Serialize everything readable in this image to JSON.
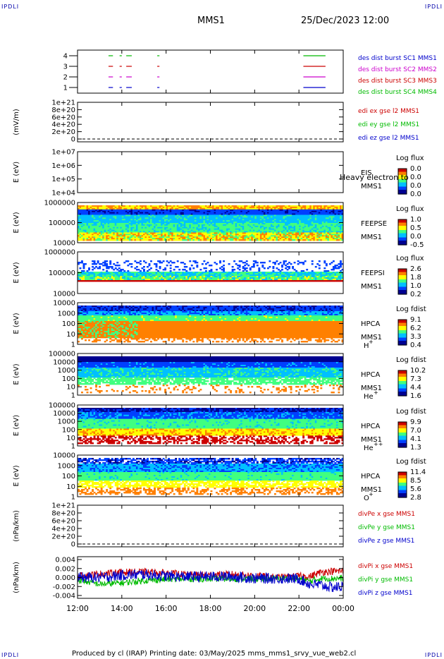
{
  "corner_label": "IPDLI",
  "header": {
    "spacecraft": "MMS1",
    "datetime": "25/Dec/2023 12:00"
  },
  "footer": "Produced by cl (IRAP)   Printing date: 03/May/2025   mms_mms1_srvy_vue_web2.cl",
  "colors": {
    "blue": "#0000cc",
    "magenta": "#cc00cc",
    "red": "#cc0000",
    "green": "#00bb00",
    "colormap": [
      "#000090",
      "#0040ff",
      "#00c0ff",
      "#40ff80",
      "#ffff00",
      "#ff8000",
      "#cc0000"
    ]
  },
  "chart_data": [
    {
      "id": "burst",
      "type": "line",
      "y_ticks": [
        "4",
        "3",
        "2",
        "1"
      ],
      "x_range_hours": [
        12,
        24
      ],
      "series": [
        {
          "name": "des dist burst SC1 MMS1",
          "color": "#0000cc",
          "level": 1,
          "segments": [
            [
              13.4,
              13.6
            ],
            [
              13.9,
              14.0
            ],
            [
              14.2,
              14.45
            ],
            [
              15.6,
              15.7
            ],
            [
              22.2,
              23.2
            ]
          ]
        },
        {
          "name": "des dist burst SC2 MMS2",
          "color": "#cc00cc",
          "level": 2,
          "segments": [
            [
              13.4,
              13.6
            ],
            [
              13.9,
              14.0
            ],
            [
              14.2,
              14.45
            ],
            [
              15.6,
              15.7
            ],
            [
              22.2,
              23.2
            ]
          ]
        },
        {
          "name": "des dist burst SC3 MMS3",
          "color": "#cc0000",
          "level": 3,
          "segments": [
            [
              13.4,
              13.6
            ],
            [
              13.9,
              14.0
            ],
            [
              14.2,
              14.45
            ],
            [
              15.6,
              15.7
            ],
            [
              22.2,
              23.2
            ]
          ]
        },
        {
          "name": "des dist burst SC4 MMS4",
          "color": "#00bb00",
          "level": 4,
          "segments": [
            [
              13.4,
              13.6
            ],
            [
              13.9,
              14.0
            ],
            [
              14.2,
              14.45
            ],
            [
              15.6,
              15.7
            ],
            [
              22.2,
              23.2
            ]
          ]
        }
      ]
    },
    {
      "id": "edi",
      "type": "line",
      "ylabel": "(mV/m)",
      "y_ticks": [
        "1e+21",
        "8e+20",
        "6e+20",
        "4e+20",
        "2e+20",
        "0"
      ],
      "legend": [
        {
          "name": "edi ex gse l2 MMS1",
          "color": "#cc0000"
        },
        {
          "name": "edi ey gse l2 MMS1",
          "color": "#00bb00"
        },
        {
          "name": "edi ez gse l2 MMS1",
          "color": "#0000cc"
        }
      ]
    },
    {
      "id": "eis",
      "type": "heatmap",
      "ylabel": "E (eV)",
      "y_ticks": [
        "1e+07",
        "1e+06",
        "1e+05",
        "1e+04"
      ],
      "instrument": [
        "EIS",
        "MMS1"
      ],
      "overlay_text": "Heavy electron to",
      "colorbar": {
        "title": "Log flux",
        "ticks": [
          "0.0",
          "0.0",
          "0.0",
          "0.0"
        ]
      }
    },
    {
      "id": "feepse",
      "type": "heatmap",
      "ylabel": "E (eV)",
      "y_ticks": [
        "1000000",
        "100000",
        "10000"
      ],
      "instrument": [
        "FEEPSE",
        "MMS1"
      ],
      "colorbar": {
        "title": "Log flux",
        "ticks": [
          "1.0",
          "0.5",
          "0.0",
          "-0.5"
        ]
      }
    },
    {
      "id": "feepsi",
      "type": "heatmap",
      "ylabel": "E (eV)",
      "y_ticks": [
        "1000000",
        "100000",
        "10000"
      ],
      "instrument": [
        "FEEPSI",
        "MMS1"
      ],
      "colorbar": {
        "title": "Log flux",
        "ticks": [
          "2.6",
          "1.8",
          "1.0",
          "0.2"
        ]
      }
    },
    {
      "id": "hpca_h",
      "type": "heatmap",
      "ylabel": "E (eV)",
      "y_ticks": [
        "10000",
        "1000",
        "100",
        "10",
        "1"
      ],
      "instrument": [
        "HPCA",
        "MMS1"
      ],
      "species": "H",
      "charge": "+",
      "colorbar": {
        "title": "Log fdist",
        "ticks": [
          "9.1",
          "6.2",
          "3.3",
          "0.4"
        ]
      }
    },
    {
      "id": "hpca_he",
      "type": "heatmap",
      "ylabel": "E (eV)",
      "y_ticks": [
        "100000",
        "10000",
        "1000",
        "100",
        "10",
        "1"
      ],
      "instrument": [
        "HPCA",
        "MMS1"
      ],
      "species": "He",
      "charge": "+",
      "colorbar": {
        "title": "Log fdist",
        "ticks": [
          "10.2",
          "7.3",
          "4.4",
          "1.6"
        ]
      }
    },
    {
      "id": "hpca_hepp",
      "type": "heatmap",
      "ylabel": "E (eV)",
      "y_ticks": [
        "100000",
        "10000",
        "1000",
        "100",
        "10",
        "1"
      ],
      "instrument": [
        "HPCA",
        "MMS1"
      ],
      "species": "He",
      "charge": "++",
      "colorbar": {
        "title": "Log fdist",
        "ticks": [
          "9.9",
          "7.0",
          "4.1",
          "1.3"
        ]
      }
    },
    {
      "id": "hpca_o",
      "type": "heatmap",
      "ylabel": "E (eV)",
      "y_ticks": [
        "10000",
        "1000",
        "100",
        "10",
        "1"
      ],
      "instrument": [
        "HPCA",
        "MMS1"
      ],
      "species": "O",
      "charge": "+",
      "colorbar": {
        "title": "Log fdist",
        "ticks": [
          "11.4",
          "8.5",
          "5.6",
          "2.8"
        ]
      }
    },
    {
      "id": "divpe",
      "type": "line",
      "ylabel": "(nPa/km)",
      "y_ticks": [
        "1e+21",
        "8e+20",
        "6e+20",
        "4e+20",
        "2e+20",
        "0"
      ],
      "legend": [
        {
          "name": "divPe x gse MMS1",
          "color": "#cc0000"
        },
        {
          "name": "divPe y gse MMS1",
          "color": "#00bb00"
        },
        {
          "name": "divPe z gse MMS1",
          "color": "#0000cc"
        }
      ]
    },
    {
      "id": "divpi",
      "type": "line",
      "ylabel": "(nPa/km)",
      "y_ticks": [
        "0.004",
        "0.002",
        "0.000",
        "-0.002",
        "-0.004"
      ],
      "ylim": [
        -0.004,
        0.004
      ],
      "legend": [
        {
          "name": "divPi x gse MMS1",
          "color": "#cc0000"
        },
        {
          "name": "divPi y gse MMS1",
          "color": "#00bb00"
        },
        {
          "name": "divPi z gse MMS1",
          "color": "#0000cc"
        }
      ],
      "trend": {
        "x_hours": [
          12,
          13,
          14,
          15,
          16,
          17,
          18,
          19,
          20,
          21,
          22,
          22.5,
          23,
          23.5,
          24
        ],
        "x": [
          0.0003,
          0.0008,
          0.0012,
          0.0012,
          0.001,
          0.0006,
          0.0006,
          0.0007,
          0.0004,
          0.0,
          0.0003,
          0.0002,
          0.0012,
          0.0014,
          0.0014
        ],
        "y": [
          -0.0005,
          -0.0015,
          -0.0012,
          -0.0007,
          -0.0004,
          -0.0003,
          -0.0003,
          -0.0003,
          -0.0003,
          -0.0002,
          -0.0003,
          -0.0008,
          -0.0002,
          -0.0002,
          -0.0002
        ],
        "z": [
          0.0,
          0.0,
          0.0005,
          0.0007,
          0.0003,
          0.0002,
          0.0002,
          0.0002,
          -0.0002,
          -0.0002,
          -0.0003,
          -0.0015,
          -0.0017,
          -0.0022,
          -0.002
        ]
      }
    }
  ],
  "x_axis": {
    "ticks": [
      "12:00",
      "14:00",
      "16:00",
      "18:00",
      "20:00",
      "22:00",
      "00:00"
    ]
  }
}
